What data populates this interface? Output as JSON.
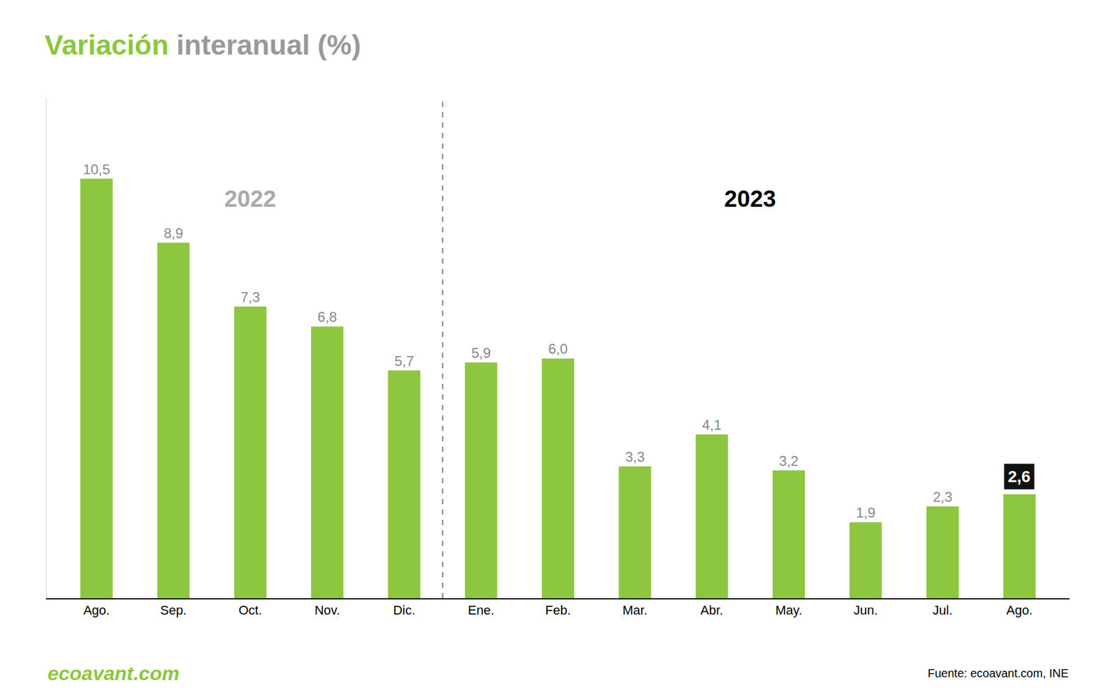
{
  "chart_data": {
    "type": "bar",
    "title": "Variación interanual (%)",
    "categories": [
      "Ago.",
      "Sep.",
      "Oct.",
      "Nov.",
      "Dic.",
      "Ene.",
      "Feb.",
      "Mar.",
      "Abr.",
      "May.",
      "Jun.",
      "Jul.",
      "Ago."
    ],
    "values": [
      10.5,
      8.9,
      7.3,
      6.8,
      5.7,
      5.9,
      6.0,
      3.3,
      4.1,
      3.2,
      1.9,
      2.3,
      2.6
    ],
    "value_labels": [
      "10,5",
      "8,9",
      "7,3",
      "6,8",
      "5,7",
      "5,9",
      "6,0",
      "3,3",
      "4,1",
      "3,2",
      "1,9",
      "2,3",
      "2,6"
    ],
    "data_labels": true,
    "color": "#8DC63F",
    "ylim": [
      0,
      12.5
    ],
    "grid": false,
    "tick_labels": "x",
    "annotations": [
      "2022",
      "2023",
      "ecoavant.com",
      "Fuente: ecoavant.com, INE"
    ]
  }
}
